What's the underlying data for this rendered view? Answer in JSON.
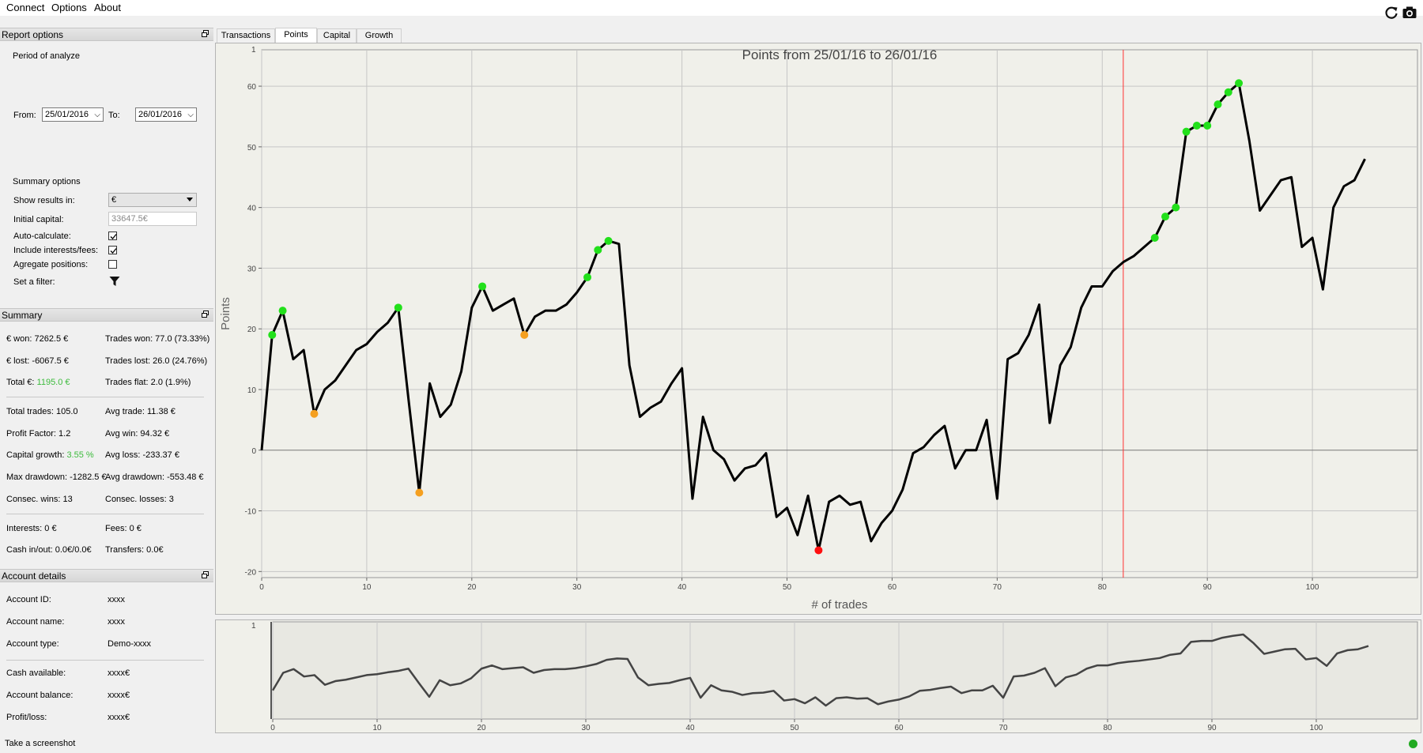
{
  "menu": [
    "Connect",
    "Options",
    "About"
  ],
  "toolbar": {
    "refresh_icon": "refresh-icon",
    "screenshot_icon": "camera-icon"
  },
  "report_options": {
    "title": "Report options",
    "period_label": "Period of analyze",
    "from_label": "From:",
    "from_value": "25/01/2016",
    "to_label": "To:",
    "to_value": "26/01/2016",
    "summary_options_label": "Summary options",
    "show_results_label": "Show results in:",
    "show_results_value": "€",
    "initial_capital_label": "Initial capital:",
    "initial_capital_placeholder": "33647.5€",
    "auto_calc_label": "Auto-calculate:",
    "auto_calc": true,
    "include_interests_label": "Include interests/fees:",
    "include_interests": true,
    "aggregate_label": "Agregate positions:",
    "aggregate": false,
    "filter_label": "Set a filter:"
  },
  "summary": {
    "title": "Summary",
    "won": "€ won: 7262.5 €",
    "trades_won": "Trades won: 77.0 (73.33%)",
    "lost": "€ lost: -6067.5 €",
    "trades_lost": "Trades lost: 26.0 (24.76%)",
    "total_label": "Total €:",
    "total_value": "1195.0 €",
    "trades_flat": "Trades flat: 2.0 (1.9%)",
    "total_trades": "Total trades: 105.0",
    "avg_trade": "Avg trade: 11.38 €",
    "profit_factor": "Profit Factor: 1.2",
    "avg_win": "Avg win: 94.32 €",
    "capital_growth_label": "Capital growth:",
    "capital_growth_value": "3.55 %",
    "avg_loss": "Avg loss: -233.37 €",
    "max_drawdown": "Max drawdown: -1282.5 €",
    "avg_drawdown": "Avg drawdown: -553.48 €",
    "consec_wins": "Consec. wins: 13",
    "consec_losses": "Consec. losses: 3",
    "interests": "Interests: 0 €",
    "fees": "Fees: 0 €",
    "cash_inout": "Cash in/out: 0.0€/0.0€",
    "transfers": "Transfers: 0.0€"
  },
  "account": {
    "title": "Account details",
    "id_label": "Account ID:",
    "id_value": "xxxx",
    "name_label": "Account name:",
    "name_value": "xxxx",
    "type_label": "Account type:",
    "type_value": "Demo-xxxx",
    "cash_label": "Cash available:",
    "cash_value": "xxxx€",
    "balance_label": "Account balance:",
    "balance_value": "xxxx€",
    "pl_label": "Profit/loss:",
    "pl_value": "xxxx€"
  },
  "tabs": [
    "Transactions",
    "Points",
    "Capital",
    "Growth"
  ],
  "active_tab": 1,
  "status_text": "Take a screenshot",
  "colors": {
    "line": "#000000",
    "win_marker": "#22e01b",
    "mid_marker": "#f5a020",
    "low_marker": "#ff1010",
    "cursor_line": "#ff3030",
    "positive": "#3dbb3d"
  },
  "chart_data": {
    "type": "line",
    "title": "Points from 25/01/16 to 26/01/16",
    "xlabel": "# of trades",
    "ylabel": "Points",
    "xlim": [
      0,
      110
    ],
    "ylim": [
      -21,
      66
    ],
    "xticks": [
      0,
      10,
      20,
      30,
      40,
      50,
      60,
      70,
      80,
      90,
      100
    ],
    "yticks": [
      -20,
      -10,
      0,
      10,
      20,
      30,
      40,
      50,
      60
    ],
    "corner_label": "1",
    "grid": true,
    "cursor_x": 82,
    "series": [
      {
        "x": [
          0,
          1,
          2,
          3,
          4,
          5,
          6,
          7,
          8,
          9,
          10,
          11,
          12,
          13,
          14,
          15,
          16,
          17,
          18,
          19,
          20,
          21,
          22,
          23,
          24,
          25,
          26,
          27,
          28,
          29,
          30,
          31,
          32,
          33,
          34,
          35,
          36,
          37,
          38,
          39,
          40,
          41,
          42,
          43,
          44,
          45,
          46,
          47,
          48,
          49,
          50,
          51,
          52,
          53,
          54,
          55,
          56,
          57,
          58,
          59,
          60,
          61,
          62,
          63,
          64,
          65,
          66,
          67,
          68,
          69,
          70,
          71,
          72,
          73,
          74,
          75,
          76,
          77,
          78,
          79,
          80,
          81,
          82,
          83,
          84,
          85,
          86,
          87,
          88,
          89,
          90,
          91,
          92,
          93,
          94,
          95,
          96,
          97,
          98,
          99,
          100,
          101,
          102,
          103,
          104,
          105
        ],
        "values": [
          0,
          19,
          23,
          15,
          16.5,
          6,
          10,
          11.5,
          14,
          16.5,
          17.5,
          19.5,
          21,
          23.5,
          8,
          -7,
          11,
          5.5,
          7.5,
          13,
          23.5,
          27,
          23,
          24,
          25,
          19,
          22,
          23,
          23,
          24,
          26,
          28.5,
          33,
          34.5,
          34,
          14,
          5.5,
          7,
          8,
          11,
          13.5,
          -8,
          5.5,
          0,
          -1.5,
          -5,
          -3,
          -2.5,
          -0.5,
          -11,
          -9.5,
          -14,
          -7.5,
          -16.5,
          -8.5,
          -7.5,
          -9,
          -8.5,
          -15,
          -12,
          -10,
          -6.5,
          -0.5,
          0.5,
          2.5,
          4,
          -3,
          0,
          0,
          5,
          -8,
          15,
          16,
          19,
          24,
          4.5,
          14,
          17,
          23.5,
          27,
          27,
          29.5,
          31,
          32,
          33.5,
          35,
          38.5,
          40,
          52.5,
          53.5,
          53.5,
          57,
          59,
          60.5,
          51,
          39.5,
          42,
          44.5,
          45,
          33.5,
          35,
          26.5,
          40,
          43.5,
          44.5,
          48
        ]
      }
    ],
    "markers": [
      {
        "x": 1,
        "y": 19,
        "kind": "win"
      },
      {
        "x": 2,
        "y": 23,
        "kind": "win"
      },
      {
        "x": 5,
        "y": 6,
        "kind": "mid"
      },
      {
        "x": 13,
        "y": 23.5,
        "kind": "win"
      },
      {
        "x": 15,
        "y": -7,
        "kind": "mid"
      },
      {
        "x": 21,
        "y": 27,
        "kind": "win"
      },
      {
        "x": 25,
        "y": 19,
        "kind": "mid"
      },
      {
        "x": 31,
        "y": 28.5,
        "kind": "win"
      },
      {
        "x": 32,
        "y": 33,
        "kind": "win"
      },
      {
        "x": 33,
        "y": 34.5,
        "kind": "win"
      },
      {
        "x": 53,
        "y": -16.5,
        "kind": "low"
      },
      {
        "x": 85,
        "y": 35,
        "kind": "win"
      },
      {
        "x": 86,
        "y": 38.5,
        "kind": "win"
      },
      {
        "x": 87,
        "y": 40,
        "kind": "win"
      },
      {
        "x": 88,
        "y": 52.5,
        "kind": "win"
      },
      {
        "x": 89,
        "y": 53.5,
        "kind": "win"
      },
      {
        "x": 90,
        "y": 53.5,
        "kind": "win"
      },
      {
        "x": 91,
        "y": 57,
        "kind": "win"
      },
      {
        "x": 92,
        "y": 59,
        "kind": "win"
      },
      {
        "x": 93,
        "y": 60.5,
        "kind": "win"
      }
    ]
  },
  "navigator": {
    "xticks": [
      0,
      10,
      20,
      30,
      40,
      50,
      60,
      70,
      80,
      90,
      100
    ],
    "xlim": [
      0,
      110
    ],
    "corner_label": "1"
  }
}
